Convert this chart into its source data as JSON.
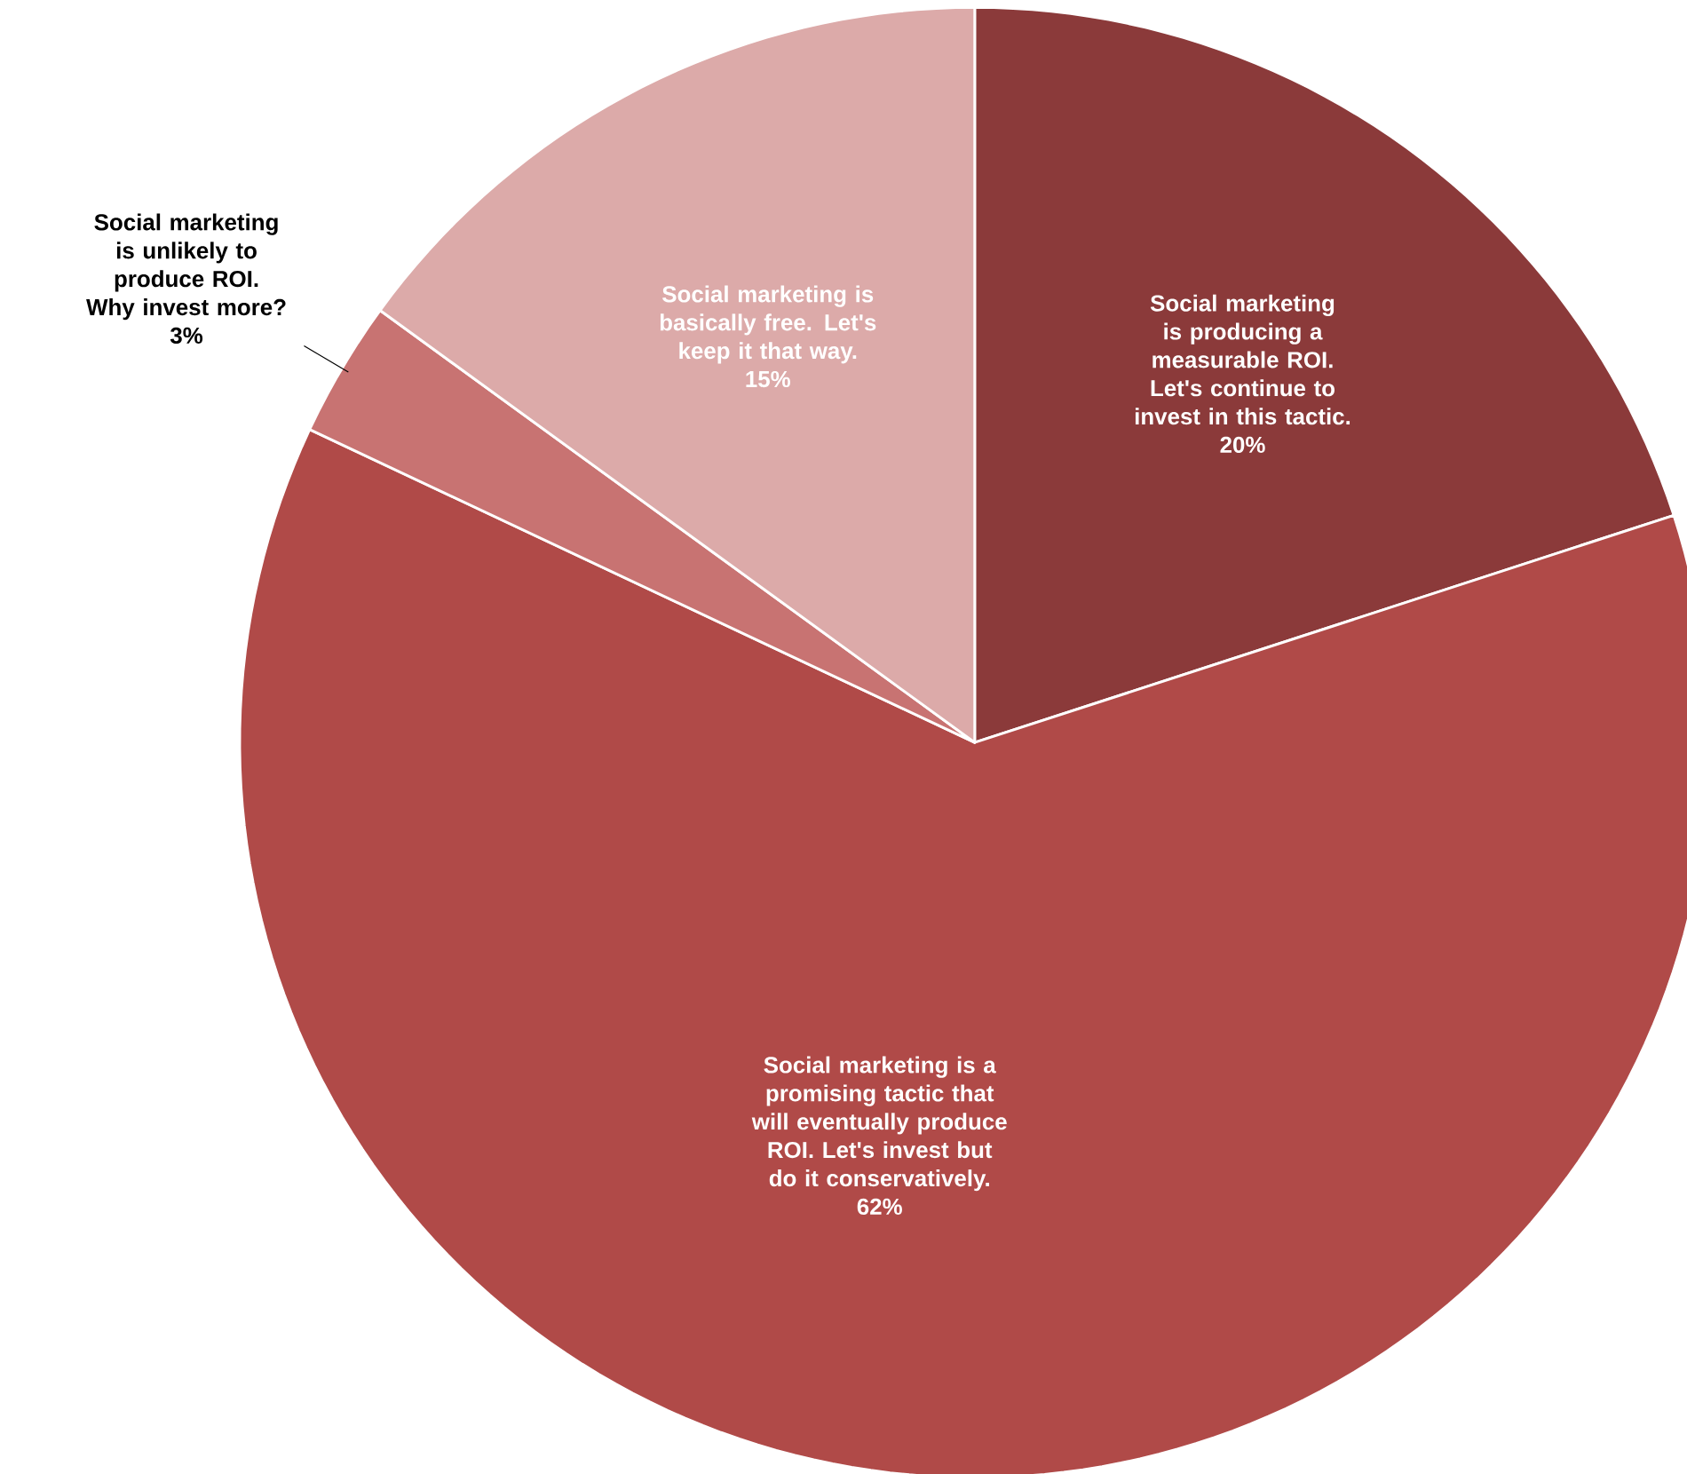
{
  "chart_data": {
    "type": "pie",
    "categories": [
      "Social marketing is producing a measurable ROI. Let's continue to invest in this tactic.",
      "Social marketing is a promising tactic that will eventually produce ROI. Let's invest but do it conservatively.",
      "Social marketing is unlikely to produce ROI. Why invest more?",
      "Social marketing is basically free. Let's keep it that way."
    ],
    "values": [
      20,
      62,
      3,
      15
    ],
    "value_labels": [
      "20%",
      "62%",
      "3%",
      "15%"
    ],
    "colors": [
      "#8b3a3a",
      "#b04a48",
      "#c87372",
      "#dcaaa9"
    ]
  }
}
